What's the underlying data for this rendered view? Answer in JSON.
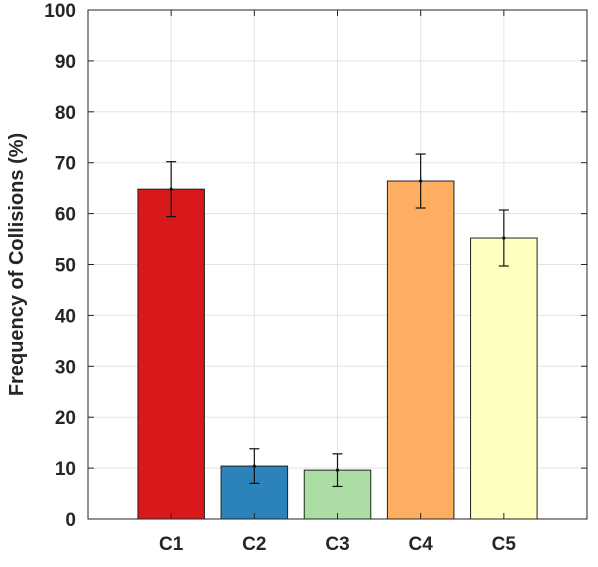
{
  "chart_data": {
    "type": "bar",
    "title": "",
    "xlabel": "",
    "ylabel": "Frequency of Collisions (%)",
    "categories": [
      "C1",
      "C2",
      "C3",
      "C4",
      "C5"
    ],
    "values": [
      64.8,
      10.4,
      9.6,
      66.4,
      55.2
    ],
    "errors": [
      5.4,
      3.4,
      3.2,
      5.3,
      5.5
    ],
    "bar_colors": [
      "#d7191c",
      "#2b83ba",
      "#abdda4",
      "#fdae61",
      "#ffffbf"
    ],
    "ylim": [
      0,
      100
    ],
    "yticks": [
      0,
      10,
      20,
      30,
      40,
      50,
      60,
      70,
      80,
      90,
      100
    ],
    "grid": true,
    "box": true
  }
}
